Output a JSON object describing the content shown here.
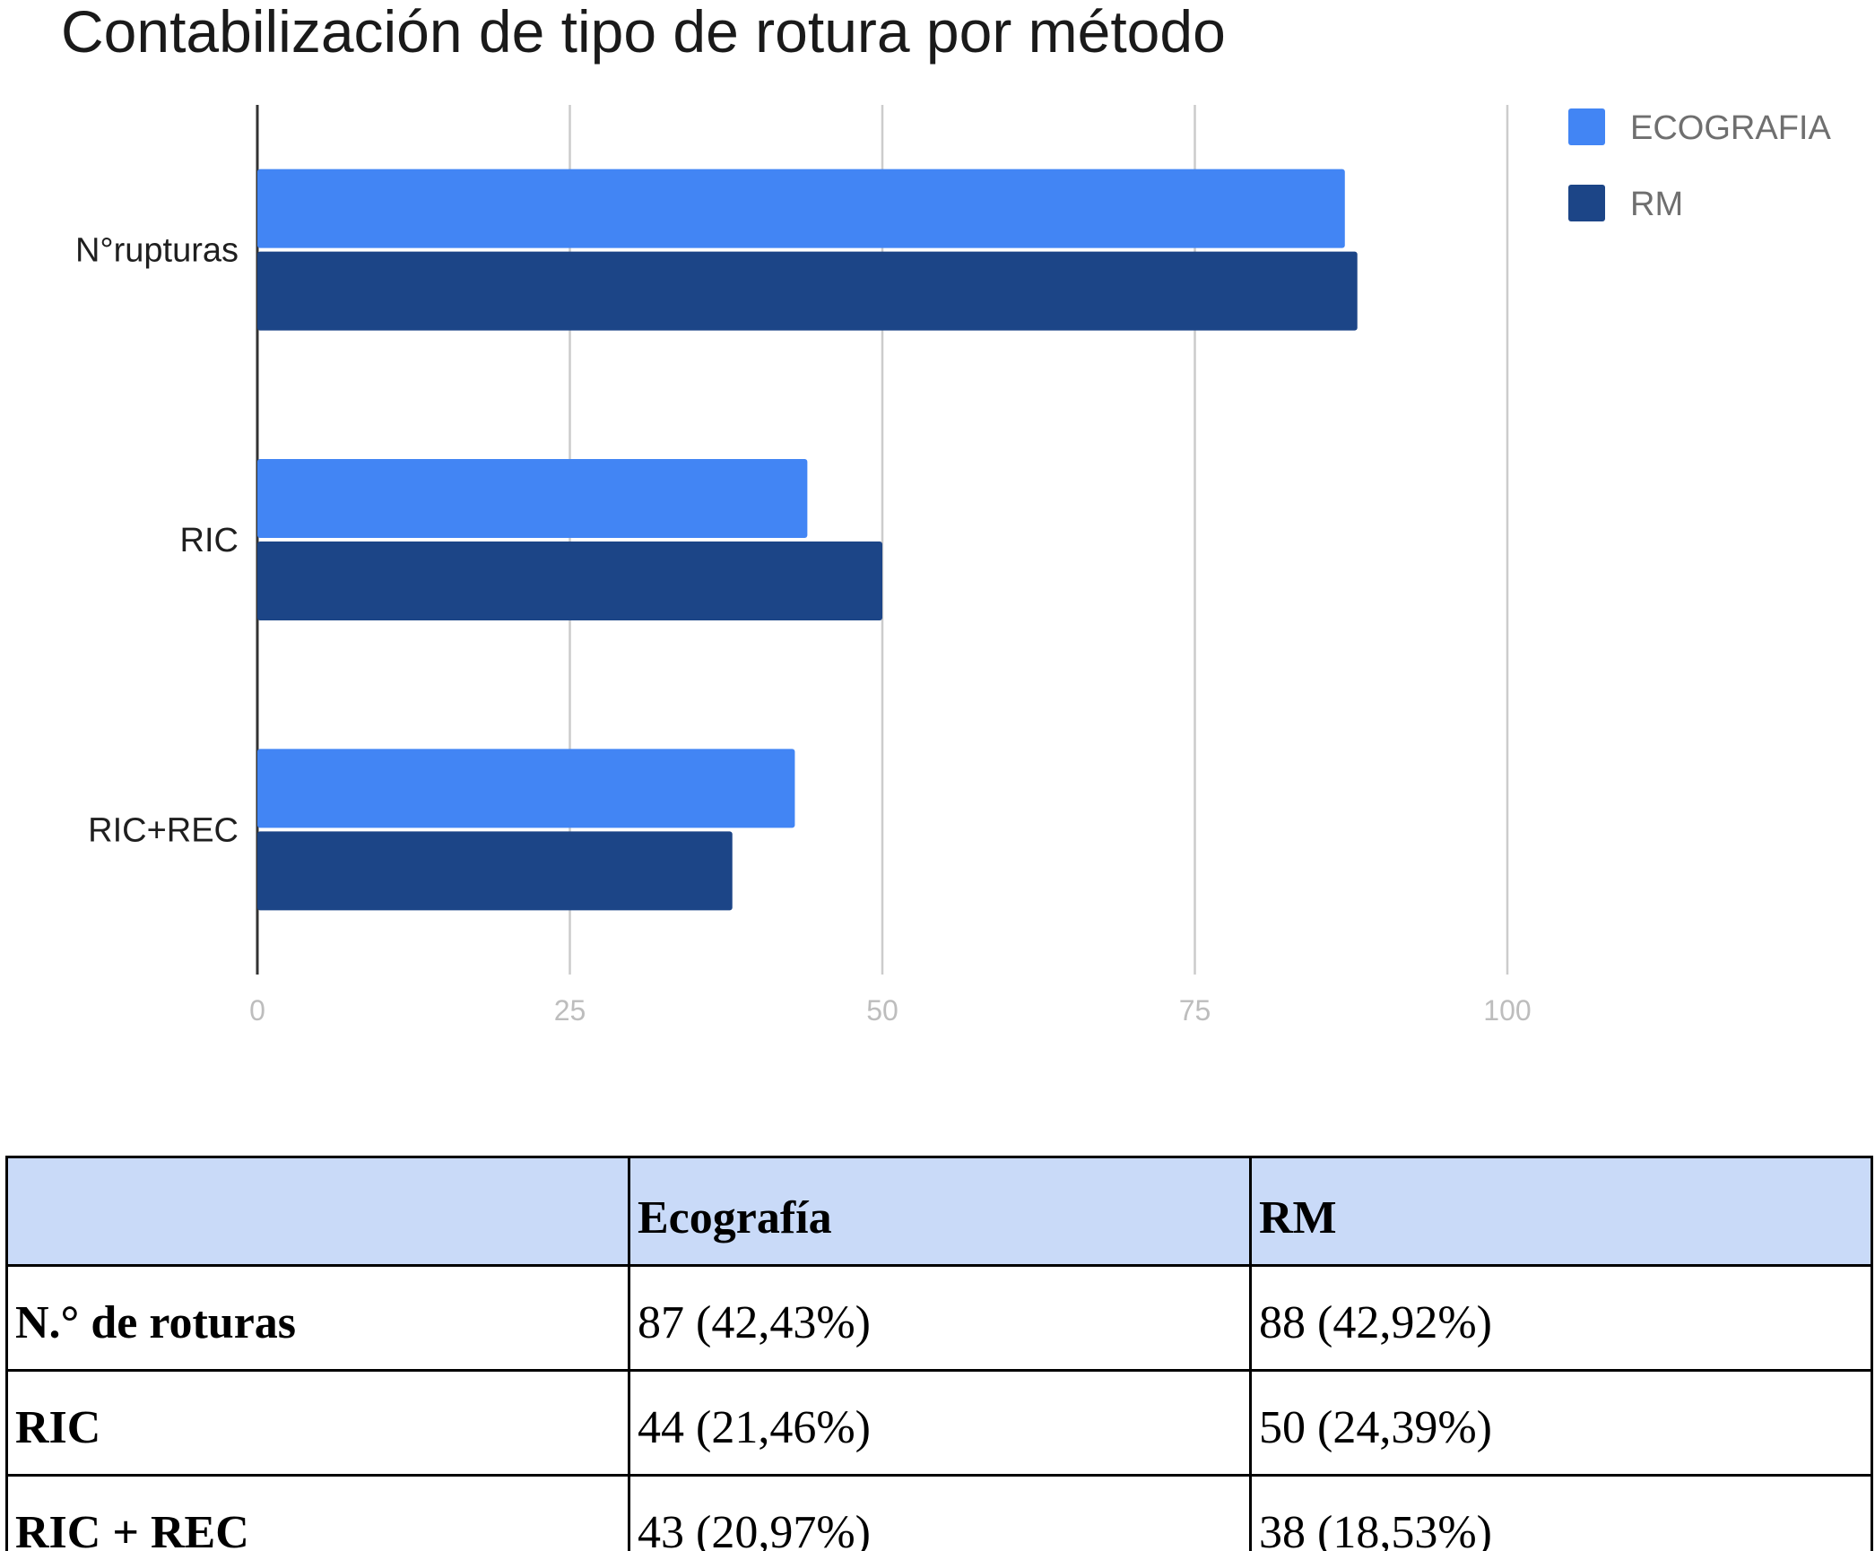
{
  "chart_data": {
    "type": "bar",
    "orientation": "horizontal",
    "title": "Contabilización de tipo de rotura por método",
    "categories": [
      "N°rupturas",
      "RIC",
      "RIC+REC"
    ],
    "series": [
      {
        "name": "ECOGRAFIA",
        "values": [
          87,
          44,
          43
        ],
        "color": "#4285f4"
      },
      {
        "name": "RM",
        "values": [
          88,
          50,
          38
        ],
        "color": "#1c4587"
      }
    ],
    "xlim": [
      0,
      100
    ],
    "xticks": [
      "0",
      "25",
      "50",
      "75",
      "100"
    ],
    "grid": true,
    "legend_position": "right"
  },
  "table": {
    "headers": [
      "",
      "Ecografía",
      "RM"
    ],
    "rows": [
      {
        "label": "N.° de roturas",
        "eco": "87 (42,43%)",
        "rm": "88 (42,92%)"
      },
      {
        "label": "RIC",
        "eco": "44 (21,46%)",
        "rm": "50 (24,39%)"
      },
      {
        "label": "RIC + REC",
        "eco": "43 (20,97%)",
        "rm": "38 (18,53%)"
      }
    ],
    "header_color": "#c9daf8"
  }
}
